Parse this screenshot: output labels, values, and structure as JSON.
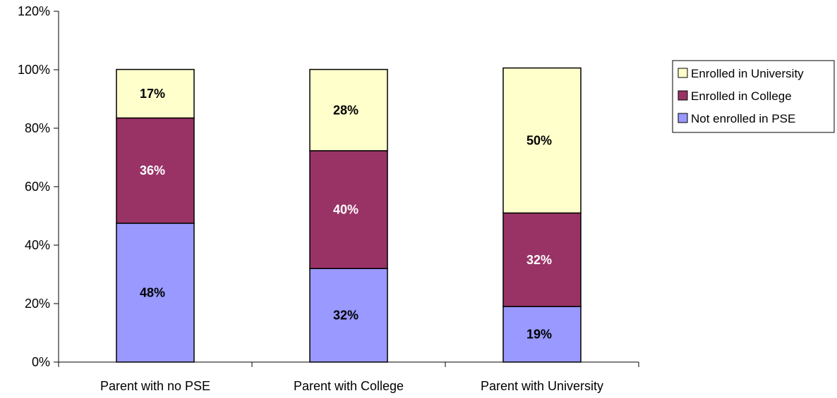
{
  "chart_data": {
    "type": "bar",
    "stacked": true,
    "categories": [
      "Parent with no PSE",
      "Parent with College",
      "Parent with University"
    ],
    "series": [
      {
        "name": "Not enrolled in PSE",
        "values": [
          47.5,
          32,
          19
        ],
        "labels": [
          "48%",
          "32%",
          "19%"
        ],
        "color": "#9999FF",
        "label_color": "#000000"
      },
      {
        "name": "Enrolled in College",
        "values": [
          36,
          40.3,
          32
        ],
        "labels": [
          "36%",
          "40%",
          "32%"
        ],
        "color": "#993366",
        "label_color": "#FFFFFF"
      },
      {
        "name": "Enrolled in University",
        "values": [
          16.6,
          27.8,
          49.6
        ],
        "labels": [
          "17%",
          "28%",
          "50%"
        ],
        "color": "#FFFFCC",
        "label_color": "#000000"
      }
    ],
    "legend_order": [
      "Enrolled in University",
      "Enrolled in College",
      "Not enrolled in PSE"
    ],
    "ylim": [
      0,
      120
    ],
    "yticks": [
      "0%",
      "20%",
      "40%",
      "60%",
      "80%",
      "100%",
      "120%"
    ],
    "ytick_values": [
      0,
      20,
      40,
      60,
      80,
      100,
      120
    ],
    "title": "",
    "xlabel": "",
    "ylabel": "",
    "grid": false,
    "legend_position": "right"
  }
}
